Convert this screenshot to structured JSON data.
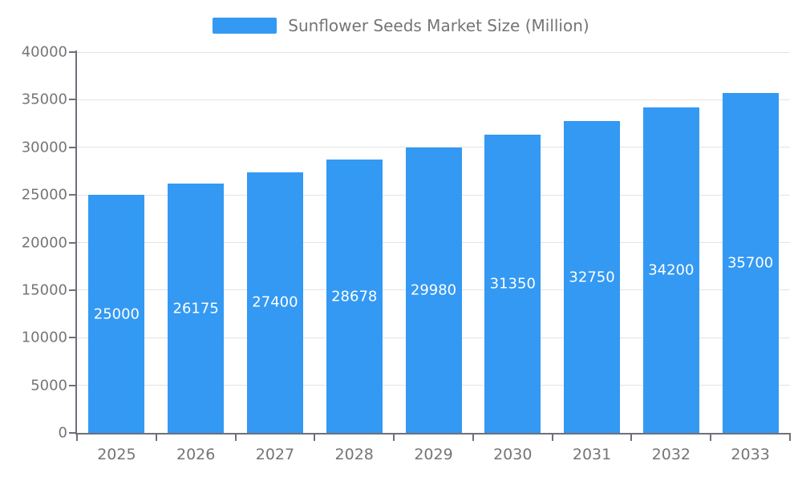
{
  "colors": {
    "bar": "#3399F3",
    "grid": "#E3E3E3",
    "axis": "#6E7079",
    "text": "#757575",
    "bar_label": "#ffffff",
    "background": "#ffffff"
  },
  "legend": {
    "label": "Sunflower Seeds Market Size (Million)"
  },
  "chart_data": {
    "type": "bar",
    "title": "Sunflower Seeds Market Size (Million)",
    "categories": [
      "2025",
      "2026",
      "2027",
      "2028",
      "2029",
      "2030",
      "2031",
      "2032",
      "2033"
    ],
    "values": [
      25000,
      26175,
      27400,
      28678,
      29980,
      31350,
      32750,
      34200,
      35700
    ],
    "xlabel": "",
    "ylabel": "",
    "ylim": [
      0,
      40000
    ],
    "yticks": [
      0,
      5000,
      10000,
      15000,
      20000,
      25000,
      30000,
      35000,
      40000
    ],
    "grid": true,
    "legend_position": "top"
  }
}
